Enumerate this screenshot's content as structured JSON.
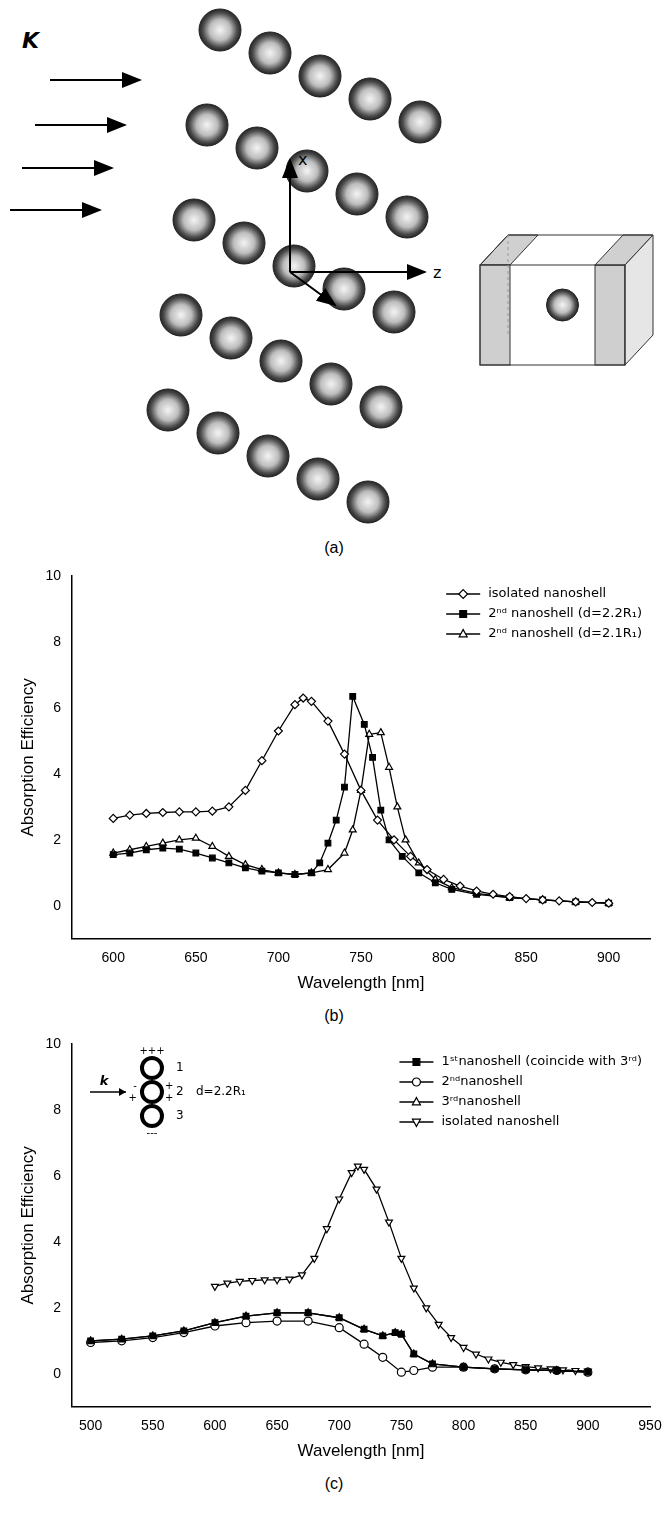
{
  "diagram": {
    "caption": "(a)",
    "wave_vector": "K",
    "axis_x": "x",
    "axis_z": "z"
  },
  "chart_data": [
    {
      "type": "line",
      "caption": "(b)",
      "xlabel": "Wavelength [nm]",
      "ylabel": "Absorption Efficiency",
      "xlim": [
        575,
        925
      ],
      "xticks": [
        600,
        650,
        700,
        750,
        800,
        850,
        900
      ],
      "ylim": [
        -1,
        10
      ],
      "yticks": [
        0,
        2,
        4,
        6,
        8,
        10
      ],
      "grid": false,
      "legend": "upper right",
      "series": [
        {
          "name": "isolated nanoshell",
          "color": "#000000",
          "marker": "open-diamond",
          "line_style": "solid",
          "x": [
            600,
            610,
            620,
            630,
            640,
            650,
            660,
            670,
            680,
            690,
            700,
            710,
            715,
            720,
            730,
            740,
            750,
            760,
            770,
            780,
            790,
            800,
            810,
            820,
            830,
            840,
            850,
            860,
            870,
            880,
            890,
            900
          ],
          "values": [
            2.65,
            2.75,
            2.8,
            2.83,
            2.85,
            2.85,
            2.87,
            3.0,
            3.5,
            4.4,
            5.3,
            6.1,
            6.3,
            6.2,
            5.6,
            4.6,
            3.5,
            2.6,
            2.0,
            1.5,
            1.1,
            0.8,
            0.6,
            0.45,
            0.35,
            0.28,
            0.22,
            0.18,
            0.15,
            0.12,
            0.1,
            0.08
          ]
        },
        {
          "name": "2ⁿᵈ nanoshell (d=2.2R₁)",
          "color": "#000000",
          "marker": "filled-square",
          "line_style": "solid",
          "x": [
            600,
            610,
            620,
            630,
            640,
            650,
            660,
            670,
            680,
            690,
            700,
            710,
            720,
            725,
            730,
            735,
            740,
            745,
            752,
            757,
            762,
            767,
            775,
            785,
            795,
            805,
            820,
            840,
            860,
            880,
            900
          ],
          "values": [
            1.55,
            1.6,
            1.7,
            1.75,
            1.72,
            1.6,
            1.45,
            1.3,
            1.15,
            1.05,
            1.0,
            0.95,
            1.0,
            1.3,
            1.9,
            2.6,
            3.6,
            6.35,
            5.5,
            4.5,
            2.9,
            2.0,
            1.5,
            1.0,
            0.7,
            0.5,
            0.35,
            0.25,
            0.18,
            0.12,
            0.08
          ]
        },
        {
          "name": "2ⁿᵈ nanoshell (d=2.1R₁)",
          "color": "#000000",
          "marker": "open-triangle",
          "line_style": "solid",
          "x": [
            600,
            610,
            620,
            630,
            640,
            650,
            660,
            670,
            680,
            690,
            700,
            710,
            720,
            730,
            740,
            745,
            750,
            755,
            762,
            767,
            772,
            777,
            785,
            795,
            805,
            820,
            840,
            860,
            880,
            900
          ],
          "values": [
            1.6,
            1.7,
            1.8,
            1.9,
            2.0,
            2.05,
            1.8,
            1.5,
            1.25,
            1.1,
            1.0,
            0.95,
            1.0,
            1.1,
            1.6,
            2.3,
            3.5,
            5.2,
            5.25,
            4.2,
            3.0,
            2.0,
            1.3,
            0.8,
            0.55,
            0.38,
            0.25,
            0.18,
            0.12,
            0.08
          ]
        }
      ]
    },
    {
      "type": "line",
      "caption": "(c)",
      "xlabel": "Wavelength [nm]",
      "ylabel": "Absorption Efficiency",
      "xlim": [
        485,
        950
      ],
      "xticks": [
        500,
        550,
        600,
        650,
        700,
        750,
        800,
        850,
        900,
        950
      ],
      "ylim": [
        -1,
        10
      ],
      "yticks": [
        0,
        2,
        4,
        6,
        8,
        10
      ],
      "grid": false,
      "legend": "upper right",
      "annotations": {
        "incident": "k",
        "particles": [
          "1",
          "2",
          "3"
        ],
        "charges": [
          "+++",
          "-",
          "+",
          "+",
          "+",
          "---"
        ],
        "spacing": "d=2.2R₁"
      },
      "series": [
        {
          "name": "1ˢᵗnanoshell (coincide with 3ʳᵈ)",
          "color": "#000000",
          "marker": "filled-square",
          "line_style": "solid",
          "x": [
            500,
            525,
            550,
            575,
            600,
            625,
            650,
            675,
            700,
            720,
            735,
            745,
            750,
            760,
            775,
            800,
            825,
            850,
            875,
            900
          ],
          "values": [
            1.0,
            1.05,
            1.15,
            1.3,
            1.55,
            1.75,
            1.85,
            1.85,
            1.7,
            1.35,
            1.15,
            1.25,
            1.2,
            0.6,
            0.3,
            0.2,
            0.15,
            0.12,
            0.1,
            0.05
          ]
        },
        {
          "name": "2ⁿᵈnanoshell",
          "color": "#000000",
          "marker": "open-circle",
          "line_style": "solid",
          "x": [
            500,
            525,
            550,
            575,
            600,
            625,
            650,
            675,
            700,
            720,
            735,
            750,
            760,
            775,
            800,
            825,
            850,
            875,
            900
          ],
          "values": [
            0.95,
            1.0,
            1.1,
            1.25,
            1.45,
            1.55,
            1.6,
            1.6,
            1.4,
            0.9,
            0.5,
            0.05,
            0.1,
            0.2,
            0.2,
            0.15,
            0.12,
            0.1,
            0.05
          ]
        },
        {
          "name": "3ʳᵈnanoshell",
          "color": "#000000",
          "marker": "open-triangle",
          "line_style": "solid",
          "x": [
            500,
            525,
            550,
            575,
            600,
            625,
            650,
            675,
            700,
            720,
            735,
            745,
            750,
            760,
            775,
            800,
            825,
            850,
            875,
            900
          ],
          "values": [
            1.0,
            1.05,
            1.15,
            1.3,
            1.55,
            1.75,
            1.85,
            1.85,
            1.7,
            1.35,
            1.15,
            1.25,
            1.2,
            0.6,
            0.3,
            0.2,
            0.15,
            0.12,
            0.1,
            0.05
          ]
        },
        {
          "name": "isolated nanoshell",
          "color": "#000000",
          "marker": "open-triangle-down",
          "line_style": "solid",
          "x": [
            600,
            610,
            620,
            630,
            640,
            650,
            660,
            670,
            680,
            690,
            700,
            710,
            715,
            720,
            730,
            740,
            750,
            760,
            770,
            780,
            790,
            800,
            810,
            820,
            830,
            840,
            850,
            860,
            870,
            880,
            890,
            900
          ],
          "values": [
            2.65,
            2.75,
            2.8,
            2.83,
            2.85,
            2.85,
            2.87,
            3.0,
            3.5,
            4.4,
            5.3,
            6.1,
            6.3,
            6.2,
            5.6,
            4.6,
            3.5,
            2.6,
            2.0,
            1.5,
            1.1,
            0.8,
            0.6,
            0.45,
            0.35,
            0.28,
            0.22,
            0.18,
            0.15,
            0.12,
            0.1,
            0.08
          ]
        }
      ]
    }
  ]
}
